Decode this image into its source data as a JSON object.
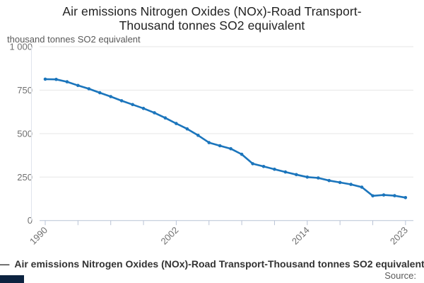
{
  "title": {
    "line1": "Air emissions Nitrogen Oxides (NOx)-Road Transport-",
    "line2": "Thousand tonnes SO2 equivalent"
  },
  "unit_label": "thousand tonnes SO2 equivalent",
  "footer": {
    "legend_marker": "—",
    "legend_label": "Air emissions Nitrogen Oxides (NOx)-Road Transport-Thousand tonnes SO2 equivalent",
    "source_label": "Source:"
  },
  "colors": {
    "line": "#1b75bc",
    "grid": "#e6e6e6",
    "axis": "#b9c3d6",
    "yaxis_line": "#e0e4ec",
    "tick_text": "#6f6f6f",
    "logo_box": "#0c2340"
  },
  "chart_data": {
    "type": "line",
    "title": "Air emissions Nitrogen Oxides (NOx)-Road Transport-Thousand tonnes SO2 equivalent",
    "ylabel": "thousand tonnes SO2 equivalent",
    "xlabel": "",
    "ylim": [
      0,
      1000
    ],
    "grid": true,
    "legend_position": "bottom",
    "x": [
      1990,
      1991,
      1992,
      1993,
      1994,
      1995,
      1996,
      1997,
      1998,
      1999,
      2000,
      2001,
      2002,
      2003,
      2004,
      2005,
      2006,
      2007,
      2008,
      2009,
      2010,
      2011,
      2012,
      2013,
      2014,
      2015,
      2016,
      2017,
      2018,
      2019,
      2020,
      2021,
      2022,
      2023
    ],
    "series": [
      {
        "name": "Air emissions Nitrogen Oxides (NOx)-Road Transport-Thousand tonnes SO2 equivalent",
        "values": [
          813,
          812,
          798,
          777,
          758,
          735,
          713,
          689,
          667,
          645,
          620,
          590,
          558,
          527,
          490,
          448,
          430,
          413,
          381,
          327,
          311,
          295,
          279,
          264,
          250,
          245,
          230,
          219,
          208,
          192,
          142,
          147,
          143,
          132
        ]
      }
    ],
    "yticks": {
      "values": [
        1000,
        750,
        500,
        250,
        0
      ],
      "labels": [
        "1 000",
        "750",
        "500",
        "250",
        "0"
      ]
    },
    "xticks": {
      "tick_years": [
        1990,
        1993,
        1996,
        1999,
        2002,
        2005,
        2008,
        2011,
        2014,
        2017,
        2020,
        2023
      ],
      "labeled_years": [
        1990,
        2002,
        2014,
        2023
      ]
    }
  }
}
